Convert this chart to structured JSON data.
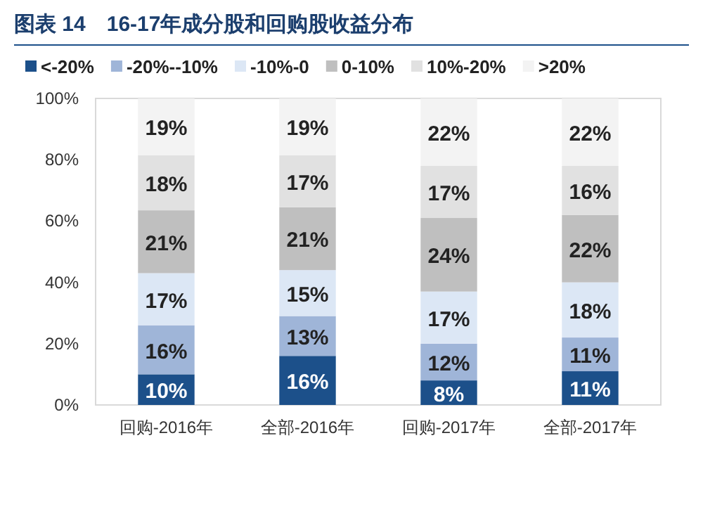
{
  "chart_data": {
    "type": "bar",
    "stacked": true,
    "title": "图表 14　16-17年成分股和回购股收益分布",
    "categories": [
      "回购-2016年",
      "全部-2016年",
      "回购-2017年",
      "全部-2017年"
    ],
    "series": [
      {
        "name": "<-20%",
        "color": "#1c508a",
        "values": [
          10,
          16,
          8,
          11
        ]
      },
      {
        "name": "-20%--10%",
        "color": "#9fb5d8",
        "values": [
          16,
          13,
          12,
          11
        ]
      },
      {
        "name": "-10%-0",
        "color": "#dce7f5",
        "values": [
          17,
          15,
          17,
          18
        ]
      },
      {
        "name": "0-10%",
        "color": "#bfbfbf",
        "values": [
          20.5,
          20.5,
          24,
          22
        ]
      },
      {
        "name": "10%-20%",
        "color": "#e1e1e1",
        "values": [
          18,
          17,
          17,
          16
        ]
      },
      {
        "name": ">20%",
        "color": "#f3f3f3",
        "values": [
          18.5,
          18.5,
          22,
          22
        ]
      }
    ],
    "ylim": [
      0,
      100
    ],
    "yticks": [
      {
        "value": 0,
        "label": "0%"
      },
      {
        "value": 20,
        "label": "20%"
      },
      {
        "value": 40,
        "label": "40%"
      },
      {
        "value": 60,
        "label": "60%"
      },
      {
        "value": 80,
        "label": "80%"
      },
      {
        "value": 100,
        "label": "100%"
      }
    ],
    "value_labels": [
      [
        "10%",
        "16%",
        "8%",
        "11%"
      ],
      [
        "16%",
        "13%",
        "12%",
        "11%"
      ],
      [
        "17%",
        "15%",
        "17%",
        "18%"
      ],
      [
        "21%",
        "21%",
        "24%",
        "22%"
      ],
      [
        "18%",
        "17%",
        "17%",
        "16%"
      ],
      [
        "19%",
        "19%",
        "22%",
        "22%"
      ]
    ],
    "legend": "top",
    "grid": false
  }
}
